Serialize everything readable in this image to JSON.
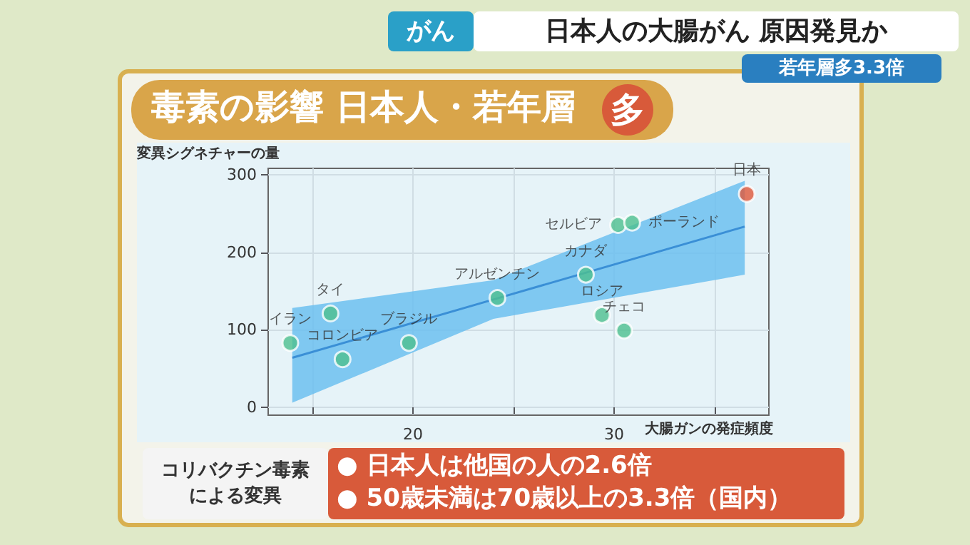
{
  "chart_data": {
    "type": "scatter",
    "title": "毒素の影響 日本人・若年層",
    "ylabel": "変異シグネチャーの量",
    "xlabel": "大腸ガンの発症頻度",
    "annotations": [
      "多",
      "がん",
      "日本人の大腸がん 原因発見か",
      "若年層多3.3倍",
      "コリバクチン毒素による変異",
      "● 日本人は他国の人の2.6倍",
      "● 50歳未満は70歳以上の3.3倍（国内）"
    ],
    "series": [
      {
        "type": "line",
        "marker": "none",
        "color": "#3a8fd6",
        "x": [
          14.0,
          24.0,
          36.5
        ],
        "values": [
          64,
          139,
          233
        ],
        "lower": [
          6,
          114,
          171
        ],
        "upper": [
          128,
          164,
          292
        ]
      },
      {
        "marker": "circle",
        "x": [
          13.9,
          15.9,
          16.5,
          19.8,
          24.2,
          28.6,
          30.2,
          30.9,
          36.6,
          29.4,
          30.5
        ],
        "values": [
          83,
          121,
          62,
          83,
          141,
          171,
          235,
          238,
          275,
          119,
          99
        ],
        "colors": [
          "#4dbf8f",
          "#4dbf8f",
          "#4dbf8f",
          "#4dbf8f",
          "#4dbf8f",
          "#4dbf8f",
          "#4dbf8f",
          "#4dbf8f",
          "#e0583a",
          "#4dbf8f",
          "#4dbf8f"
        ],
        "value_labels": [
          "イラン",
          "タイ",
          "コロンビア",
          "ブラジル",
          "アルゼンチン",
          "カナダ",
          "セルビア",
          "ポーランド",
          "日本",
          "ロシア",
          "チェコ"
        ]
      }
    ],
    "xlim": [
      12.8,
      37.7
    ],
    "ylim": [
      -10,
      308
    ],
    "xticks": [
      {
        "value": 15,
        "label": null
      },
      20,
      {
        "value": 25,
        "label": null
      },
      30,
      {
        "value": 35,
        "label": null
      }
    ],
    "yticks": [
      0,
      100,
      200,
      300
    ],
    "grid": true
  }
}
